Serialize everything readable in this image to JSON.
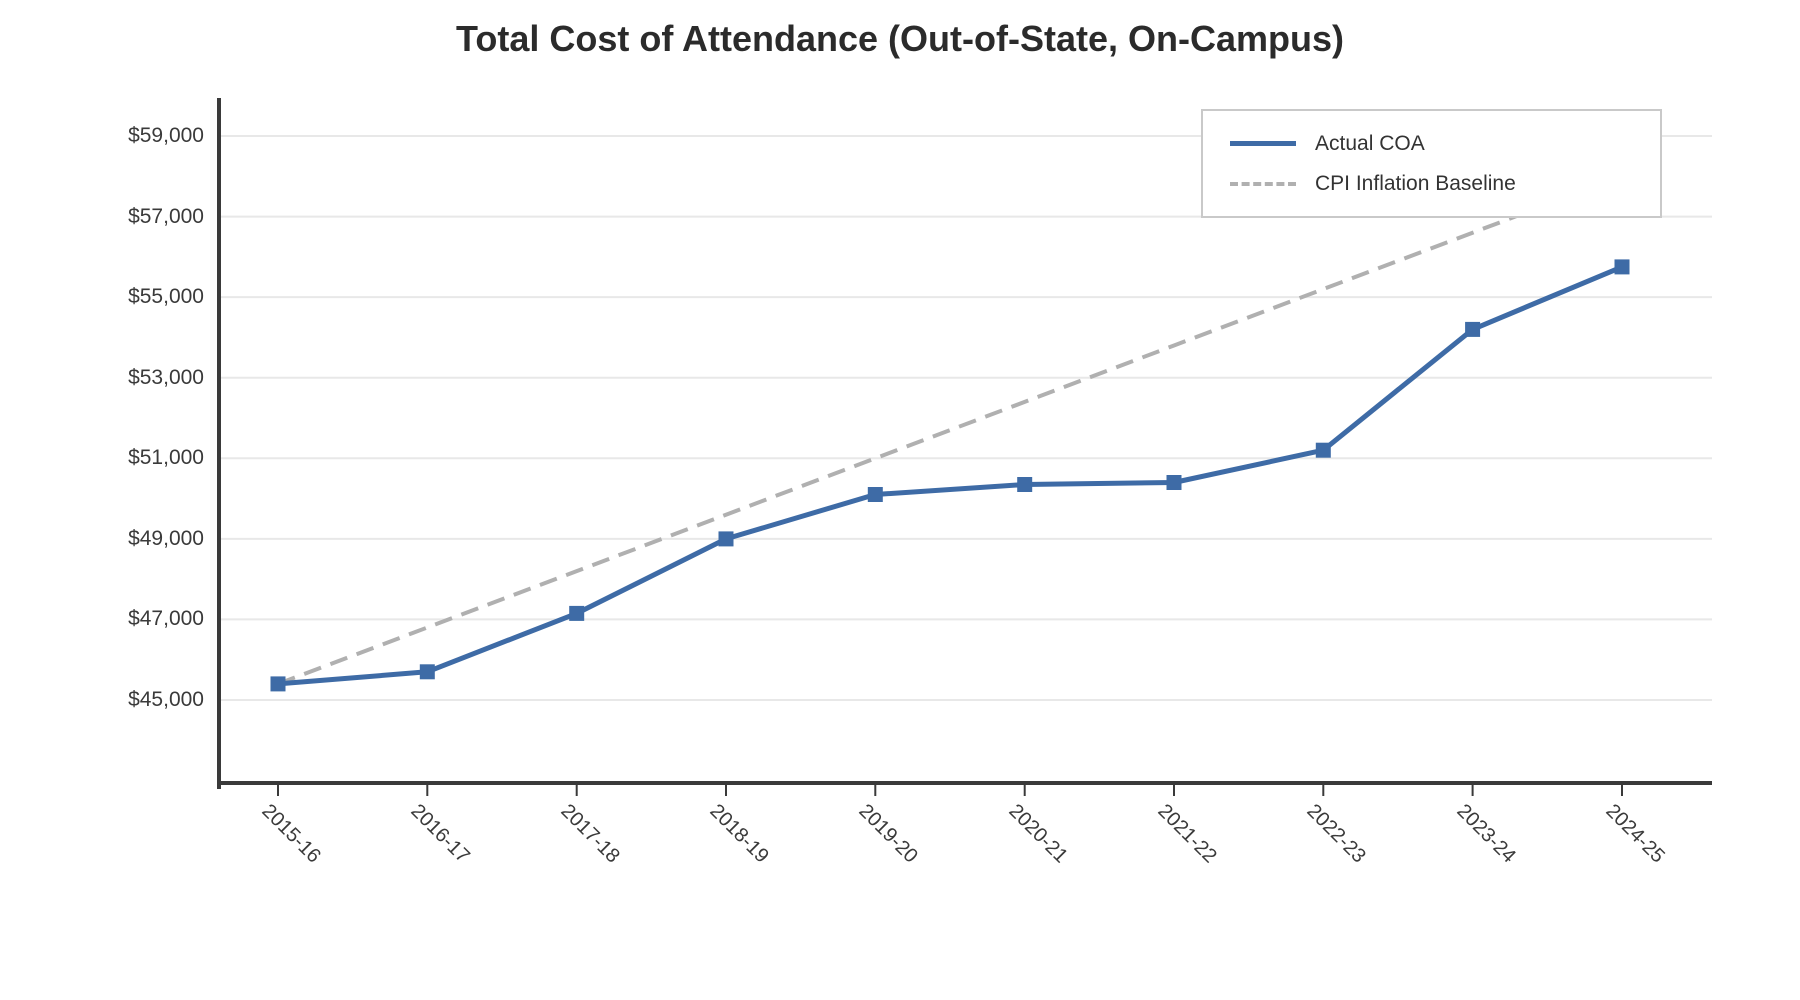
{
  "chart_data": {
    "type": "line",
    "title": "Total Cost of Attendance (Out-of-State, On-Campus)",
    "categories": [
      "2015-16",
      "2016-17",
      "2017-18",
      "2018-19",
      "2019-20",
      "2020-21",
      "2021-22",
      "2022-23",
      "2023-24",
      "2024-25"
    ],
    "series": [
      {
        "name": "Actual COA",
        "values": [
          45400,
          45700,
          47150,
          49000,
          50100,
          50350,
          50400,
          51200,
          54200,
          55750
        ],
        "color": "#3e6ba6",
        "line_style": "solid",
        "marker": "square"
      },
      {
        "name": "CPI Inflation Baseline",
        "values": [
          45400,
          46800,
          48200,
          49600,
          51000,
          52400,
          53800,
          55200,
          56600,
          58000
        ],
        "color": "#b0b0b0",
        "line_style": "dashed",
        "marker": "none"
      }
    ],
    "xlabel": "",
    "ylabel": "",
    "ylim": [
      42900,
      59950
    ],
    "ytick_values": [
      45000,
      47000,
      49000,
      51000,
      53000,
      55000,
      57000,
      59000
    ],
    "ytick_labels": [
      "$45,000",
      "$47,000",
      "$49,000",
      "$51,000",
      "$53,000",
      "$55,000",
      "$57,000",
      "$59,000"
    ],
    "grid": "horizontal",
    "legend_position": "upper right"
  }
}
